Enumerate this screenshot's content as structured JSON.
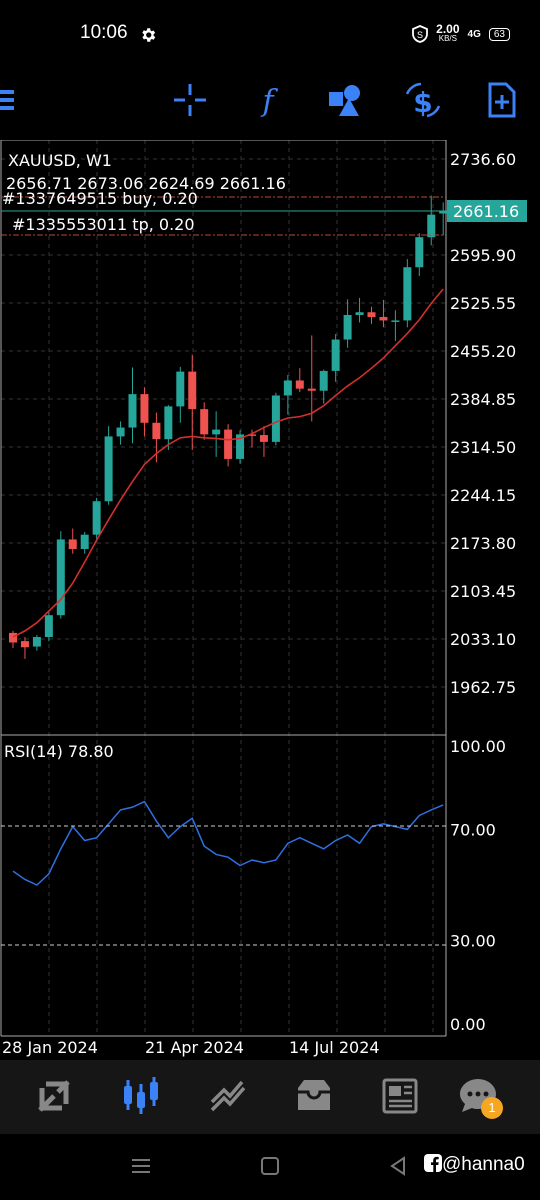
{
  "status_bar": {
    "time": "10:06",
    "net_speed_value": "2.00",
    "net_speed_unit": "KB/S",
    "network": "4G",
    "battery": "63"
  },
  "toolbar": {
    "icons": [
      "crosshair-icon",
      "function-icon",
      "shapes-icon",
      "dollar-icon",
      "new-order-icon"
    ],
    "accent": "#3b82f6"
  },
  "chart": {
    "symbol_timeframe": "XAUUSD, W1",
    "ohlc_text": "2656.71 2673.06 2624.69 2661.16",
    "order1_text": "#1337649515 buy, 0.20",
    "order2_text": "#1335553011 tp, 0.20",
    "price_tag": "2661.16",
    "rsi_label": "RSI(14) 78.80",
    "price_ticks": [
      "2736.60",
      "2595.90",
      "2525.55",
      "2455.20",
      "2384.85",
      "2314.50",
      "2244.15",
      "2173.80",
      "2103.45",
      "2033.10",
      "1962.75"
    ],
    "rsi_ticks": [
      "100.00",
      "70.00",
      "30.00",
      "0.00"
    ],
    "date_labels": [
      "28 Jan 2024",
      "21 Apr 2024",
      "14 Jul 2024"
    ],
    "colors": {
      "bull": "#26a69a",
      "bear": "#ef5350",
      "ma": "#d32f2f",
      "rsi": "#2f6fe0",
      "tag": "#26a69a",
      "order_line": "#b84a3a"
    }
  },
  "chart_data": {
    "type": "candlestick",
    "title": "XAUUSD, W1",
    "ylim": [
      1915,
      2760
    ],
    "candles": [
      [
        2042,
        2045,
        2020,
        2028
      ],
      [
        2030,
        2036,
        2004,
        2021
      ],
      [
        2022,
        2039,
        2016,
        2036
      ],
      [
        2036,
        2072,
        2030,
        2068
      ],
      [
        2068,
        2191,
        2063,
        2179
      ],
      [
        2179,
        2195,
        2158,
        2165
      ],
      [
        2165,
        2190,
        2158,
        2186
      ],
      [
        2186,
        2240,
        2178,
        2235
      ],
      [
        2235,
        2345,
        2230,
        2330
      ],
      [
        2330,
        2352,
        2318,
        2343
      ],
      [
        2343,
        2431,
        2320,
        2392
      ],
      [
        2392,
        2402,
        2330,
        2350
      ],
      [
        2350,
        2365,
        2292,
        2326
      ],
      [
        2326,
        2376,
        2310,
        2374
      ],
      [
        2374,
        2432,
        2350,
        2425
      ],
      [
        2425,
        2450,
        2310,
        2370
      ],
      [
        2370,
        2380,
        2325,
        2333
      ],
      [
        2333,
        2367,
        2300,
        2340
      ],
      [
        2340,
        2348,
        2286,
        2297
      ],
      [
        2297,
        2339,
        2290,
        2333
      ],
      [
        2333,
        2340,
        2314,
        2332
      ],
      [
        2332,
        2345,
        2300,
        2322
      ],
      [
        2322,
        2394,
        2317,
        2390
      ],
      [
        2390,
        2420,
        2362,
        2412
      ],
      [
        2412,
        2430,
        2395,
        2400
      ],
      [
        2400,
        2478,
        2352,
        2397
      ],
      [
        2397,
        2428,
        2378,
        2426
      ],
      [
        2426,
        2480,
        2410,
        2472
      ],
      [
        2472,
        2531,
        2460,
        2508
      ],
      [
        2508,
        2533,
        2497,
        2512
      ],
      [
        2512,
        2520,
        2495,
        2505
      ],
      [
        2505,
        2530,
        2490,
        2500
      ],
      [
        2500,
        2515,
        2470,
        2500
      ],
      [
        2500,
        2590,
        2490,
        2578
      ],
      [
        2578,
        2628,
        2565,
        2622
      ],
      [
        2622,
        2683,
        2610,
        2655
      ],
      [
        2656.71,
        2673.06,
        2624.69,
        2661.16
      ]
    ],
    "ma": [
      2036,
      2045,
      2057,
      2074,
      2091,
      2115,
      2146,
      2178,
      2208,
      2237,
      2264,
      2289,
      2305,
      2318,
      2328,
      2330,
      2328,
      2327,
      2325,
      2327,
      2334,
      2343,
      2351,
      2357,
      2359,
      2364,
      2375,
      2390,
      2404,
      2416,
      2430,
      2445,
      2463,
      2481,
      2501,
      2525,
      2546
    ],
    "rsi_ylim": [
      0,
      100
    ],
    "rsi_levels": [
      70,
      30
    ],
    "rsi": [
      55,
      52,
      50,
      54,
      63,
      71,
      66,
      67,
      72,
      77,
      78,
      80,
      73,
      67,
      71,
      74,
      64,
      61,
      60,
      57,
      59,
      58,
      59,
      65,
      67,
      65,
      63,
      66,
      68,
      65,
      71,
      72,
      71,
      70,
      75,
      77,
      78.8
    ]
  },
  "bottom_nav": {
    "items": [
      "quotes-icon",
      "chart-icon",
      "trade-icon",
      "history-icon",
      "news-icon",
      "chat-icon"
    ],
    "badge": "1"
  },
  "system_nav": {
    "watermark": "@hanna0"
  }
}
